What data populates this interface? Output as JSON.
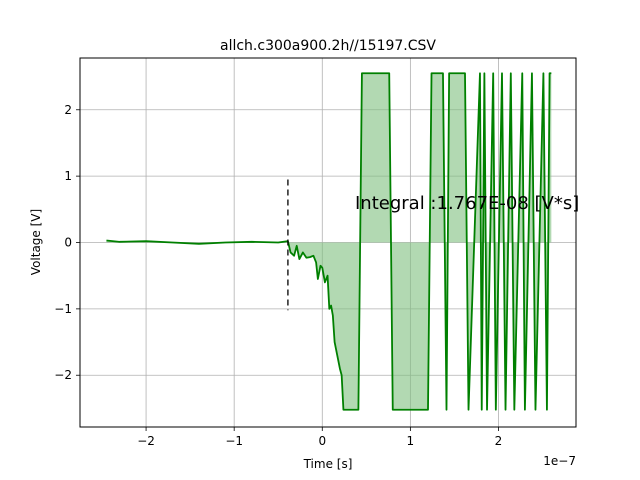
{
  "chart_data": {
    "type": "line",
    "title": "allch.c300a900.2h//15197.CSV",
    "xlabel": "Time [s]",
    "ylabel": "Voltage [V]",
    "x_offset_label": "1e−7",
    "xlim": [
      -2.75,
      2.88
    ],
    "ylim": [
      -2.78,
      2.78
    ],
    "x_scale": 1e-07,
    "xticks": [
      -2,
      -1,
      0,
      1,
      2
    ],
    "xtick_labels": [
      "−2",
      "−1",
      "0",
      "1",
      "2"
    ],
    "yticks": [
      -2,
      -1,
      0,
      1,
      2
    ],
    "ytick_labels": [
      "−2",
      "−1",
      "0",
      "1",
      "2"
    ],
    "grid": true,
    "line_color": "#008000",
    "fill_color": "#7fbf7f",
    "fill_alpha": 0.6,
    "annotation": "Integral :1.767E-08 [V*s]",
    "trigger_line": {
      "x": -0.39,
      "y0": -1.02,
      "y1": 0.95
    },
    "series": [
      {
        "x": [
          -2.45,
          -2.3,
          -2.0,
          -1.7,
          -1.4,
          -1.1,
          -0.8,
          -0.5,
          -0.39,
          -0.36,
          -0.32,
          -0.29,
          -0.26,
          -0.22,
          -0.18,
          -0.14,
          -0.1,
          -0.07,
          -0.05,
          -0.02,
          0.0,
          0.03,
          0.06,
          0.08,
          0.1,
          0.12,
          0.14,
          0.17,
          0.2,
          0.22,
          0.24,
          0.26,
          0.41,
          0.45,
          0.76,
          0.8,
          1.0,
          1.2,
          1.24,
          1.37,
          1.41,
          1.44,
          1.62,
          1.66,
          1.79,
          1.81,
          1.84,
          1.87,
          1.94,
          1.97,
          2.04,
          2.08,
          2.14,
          2.18,
          2.27,
          2.3,
          2.38,
          2.42,
          2.51,
          2.55,
          2.58,
          2.6
        ],
        "y": [
          0.03,
          0.01,
          0.02,
          0.0,
          -0.02,
          0.0,
          0.01,
          0.0,
          0.02,
          -0.15,
          -0.2,
          -0.05,
          -0.25,
          -0.15,
          -0.23,
          -0.22,
          -0.2,
          -0.3,
          -0.55,
          -0.35,
          -0.38,
          -0.6,
          -0.5,
          -1.0,
          -0.95,
          -1.1,
          -1.5,
          -1.7,
          -1.9,
          -2.0,
          -2.52,
          -2.52,
          -2.52,
          2.55,
          2.55,
          -2.52,
          -2.52,
          -2.52,
          2.55,
          2.55,
          -2.52,
          2.55,
          2.55,
          -2.52,
          2.55,
          -2.52,
          2.55,
          -2.52,
          2.55,
          -2.52,
          2.55,
          -2.52,
          2.55,
          -2.52,
          2.55,
          -2.52,
          2.55,
          -2.52,
          2.55,
          -2.52,
          2.55,
          2.55
        ]
      }
    ]
  }
}
